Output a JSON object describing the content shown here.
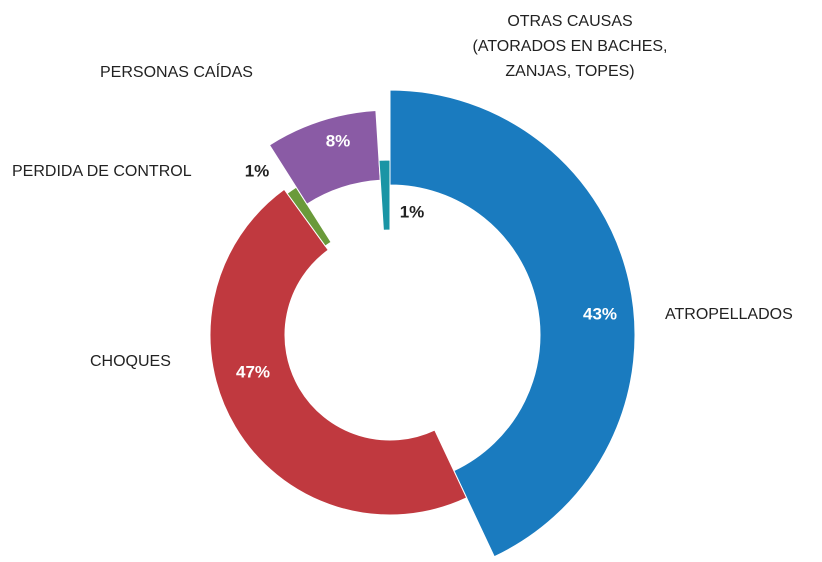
{
  "chart_data": {
    "type": "donut",
    "categories": [
      "ATROPELLADOS",
      "CHOQUES",
      "PERDIDA DE CONTROL",
      "PERSONAS CAÍDAS",
      "OTRAS CAUSAS\n(ATORADOS EN BACHES,\nZANJAS, TOPES)"
    ],
    "values": [
      43,
      47,
      1,
      8,
      1
    ],
    "value_labels": [
      "43%",
      "47%",
      "1%",
      "8%",
      "1%"
    ],
    "colors": [
      "#1a7bbf",
      "#c0393f",
      "#6a9a3a",
      "#8a5ba5",
      "#1a95a5"
    ]
  }
}
